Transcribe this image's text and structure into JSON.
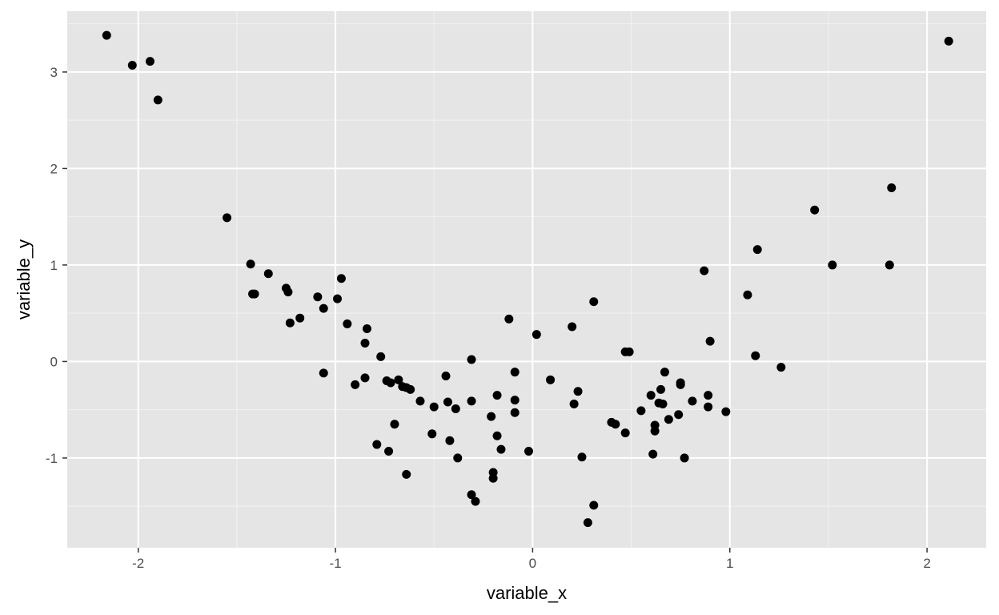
{
  "chart_data": {
    "type": "scatter",
    "title": "",
    "xlabel": "variable_x",
    "ylabel": "variable_y",
    "xlim": [
      -2.36,
      2.3
    ],
    "ylim": [
      -1.93,
      3.63
    ],
    "x_ticks": [
      -2,
      -1,
      0,
      1,
      2
    ],
    "y_ticks": [
      -1,
      0,
      1,
      2,
      3
    ],
    "x_tick_labels": [
      "-2",
      "-1",
      "0",
      "1",
      "2"
    ],
    "y_tick_labels": [
      "-1",
      "0",
      "1",
      "2",
      "3"
    ],
    "grid": true,
    "legend": "none",
    "colors": {
      "panel": "#e5e5e5",
      "grid_major": "#ffffff",
      "grid_minor": "#f2f2f2",
      "point": "#000000",
      "tick_text": "#4d4d4d",
      "tick_mark": "#333333"
    },
    "points": [
      {
        "x": -2.16,
        "y": 3.38
      },
      {
        "x": -2.03,
        "y": 3.07
      },
      {
        "x": -1.94,
        "y": 3.11
      },
      {
        "x": -1.9,
        "y": 2.71
      },
      {
        "x": -1.55,
        "y": 1.49
      },
      {
        "x": -1.43,
        "y": 1.01
      },
      {
        "x": -1.42,
        "y": 0.7
      },
      {
        "x": -1.41,
        "y": 0.7
      },
      {
        "x": -1.34,
        "y": 0.91
      },
      {
        "x": -1.25,
        "y": 0.76
      },
      {
        "x": -1.24,
        "y": 0.72
      },
      {
        "x": -1.23,
        "y": 0.4
      },
      {
        "x": -1.18,
        "y": 0.45
      },
      {
        "x": -1.09,
        "y": 0.67
      },
      {
        "x": -1.06,
        "y": 0.55
      },
      {
        "x": -1.06,
        "y": -0.12
      },
      {
        "x": -0.99,
        "y": 0.65
      },
      {
        "x": -0.97,
        "y": 0.86
      },
      {
        "x": -0.94,
        "y": 0.39
      },
      {
        "x": -0.9,
        "y": -0.24
      },
      {
        "x": -0.85,
        "y": 0.19
      },
      {
        "x": -0.85,
        "y": -0.17
      },
      {
        "x": -0.84,
        "y": 0.34
      },
      {
        "x": -0.79,
        "y": -0.86
      },
      {
        "x": -0.77,
        "y": 0.05
      },
      {
        "x": -0.74,
        "y": -0.2
      },
      {
        "x": -0.73,
        "y": -0.93
      },
      {
        "x": -0.72,
        "y": -0.22
      },
      {
        "x": -0.7,
        "y": -0.65
      },
      {
        "x": -0.68,
        "y": -0.19
      },
      {
        "x": -0.66,
        "y": -0.26
      },
      {
        "x": -0.64,
        "y": -0.27
      },
      {
        "x": -0.64,
        "y": -1.17
      },
      {
        "x": -0.62,
        "y": -0.29
      },
      {
        "x": -0.57,
        "y": -0.41
      },
      {
        "x": -0.51,
        "y": -0.75
      },
      {
        "x": -0.5,
        "y": -0.47
      },
      {
        "x": -0.44,
        "y": -0.15
      },
      {
        "x": -0.43,
        "y": -0.42
      },
      {
        "x": -0.42,
        "y": -0.82
      },
      {
        "x": -0.39,
        "y": -0.49
      },
      {
        "x": -0.38,
        "y": -1.0
      },
      {
        "x": -0.31,
        "y": 0.02
      },
      {
        "x": -0.31,
        "y": -0.41
      },
      {
        "x": -0.31,
        "y": -1.38
      },
      {
        "x": -0.29,
        "y": -1.45
      },
      {
        "x": -0.21,
        "y": -0.57
      },
      {
        "x": -0.2,
        "y": -1.15
      },
      {
        "x": -0.2,
        "y": -1.21
      },
      {
        "x": -0.18,
        "y": -0.35
      },
      {
        "x": -0.18,
        "y": -0.77
      },
      {
        "x": -0.16,
        "y": -0.91
      },
      {
        "x": -0.12,
        "y": 0.44
      },
      {
        "x": -0.09,
        "y": -0.11
      },
      {
        "x": -0.09,
        "y": -0.4
      },
      {
        "x": -0.09,
        "y": -0.53
      },
      {
        "x": -0.02,
        "y": -0.93
      },
      {
        "x": 0.02,
        "y": 0.28
      },
      {
        "x": 0.09,
        "y": -0.19
      },
      {
        "x": 0.2,
        "y": 0.36
      },
      {
        "x": 0.21,
        "y": -0.44
      },
      {
        "x": 0.23,
        "y": -0.31
      },
      {
        "x": 0.25,
        "y": -0.99
      },
      {
        "x": 0.28,
        "y": -1.67
      },
      {
        "x": 0.31,
        "y": -1.49
      },
      {
        "x": 0.31,
        "y": 0.62
      },
      {
        "x": 0.4,
        "y": -0.63
      },
      {
        "x": 0.42,
        "y": -0.65
      },
      {
        "x": 0.47,
        "y": -0.74
      },
      {
        "x": 0.47,
        "y": 0.1
      },
      {
        "x": 0.49,
        "y": 0.1
      },
      {
        "x": 0.55,
        "y": -0.51
      },
      {
        "x": 0.6,
        "y": -0.35
      },
      {
        "x": 0.61,
        "y": -0.96
      },
      {
        "x": 0.62,
        "y": -0.66
      },
      {
        "x": 0.62,
        "y": -0.72
      },
      {
        "x": 0.64,
        "y": -0.43
      },
      {
        "x": 0.65,
        "y": -0.29
      },
      {
        "x": 0.66,
        "y": -0.44
      },
      {
        "x": 0.67,
        "y": -0.11
      },
      {
        "x": 0.69,
        "y": -0.6
      },
      {
        "x": 0.74,
        "y": -0.55
      },
      {
        "x": 0.75,
        "y": -0.22
      },
      {
        "x": 0.75,
        "y": -0.24
      },
      {
        "x": 0.77,
        "y": -1.0
      },
      {
        "x": 0.81,
        "y": -0.41
      },
      {
        "x": 0.87,
        "y": 0.94
      },
      {
        "x": 0.89,
        "y": -0.35
      },
      {
        "x": 0.89,
        "y": -0.47
      },
      {
        "x": 0.9,
        "y": 0.21
      },
      {
        "x": 0.98,
        "y": -0.52
      },
      {
        "x": 1.09,
        "y": 0.69
      },
      {
        "x": 1.13,
        "y": 0.06
      },
      {
        "x": 1.14,
        "y": 1.16
      },
      {
        "x": 1.26,
        "y": -0.06
      },
      {
        "x": 1.43,
        "y": 1.57
      },
      {
        "x": 1.52,
        "y": 1.0
      },
      {
        "x": 1.81,
        "y": 1.0
      },
      {
        "x": 1.82,
        "y": 1.8
      },
      {
        "x": 2.11,
        "y": 3.32
      }
    ]
  }
}
